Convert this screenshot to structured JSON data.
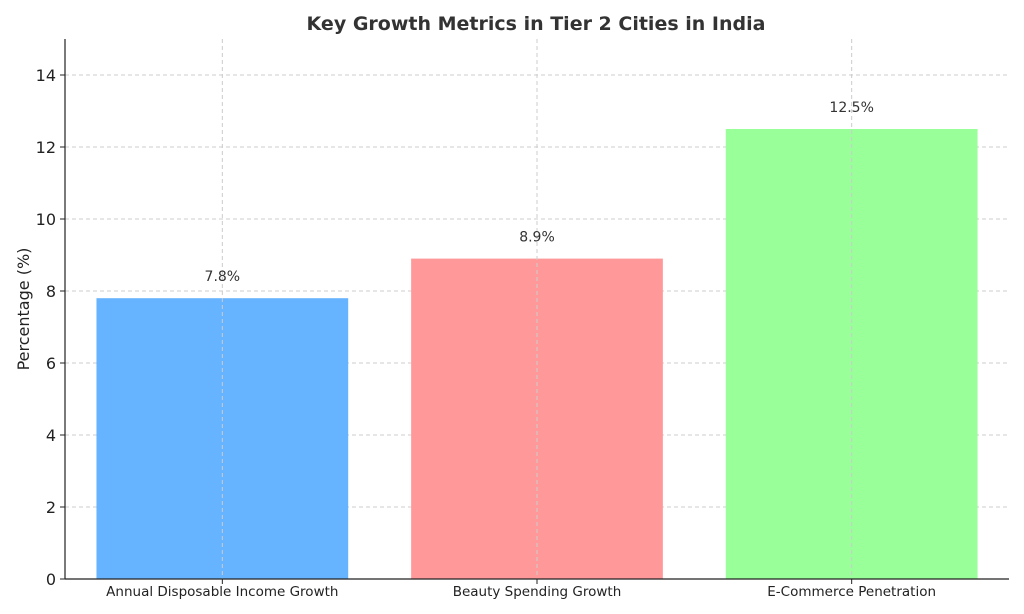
{
  "chart_data": {
    "type": "bar",
    "title": "Key Growth Metrics in Tier 2 Cities in India",
    "xlabel": "",
    "ylabel": "Percentage (%)",
    "categories": [
      "Annual Disposable Income Growth",
      "Beauty Spending Growth",
      "E-Commerce Penetration"
    ],
    "values": [
      7.8,
      8.9,
      12.5
    ],
    "data_labels": [
      "7.8%",
      "8.9%",
      "12.5%"
    ],
    "colors": [
      "#66b3ff",
      "#ff9999",
      "#99ff99"
    ],
    "ylim": [
      0,
      15
    ],
    "yticks": [
      0,
      2,
      4,
      6,
      8,
      10,
      12,
      14
    ],
    "grid": true,
    "legend": "none"
  }
}
